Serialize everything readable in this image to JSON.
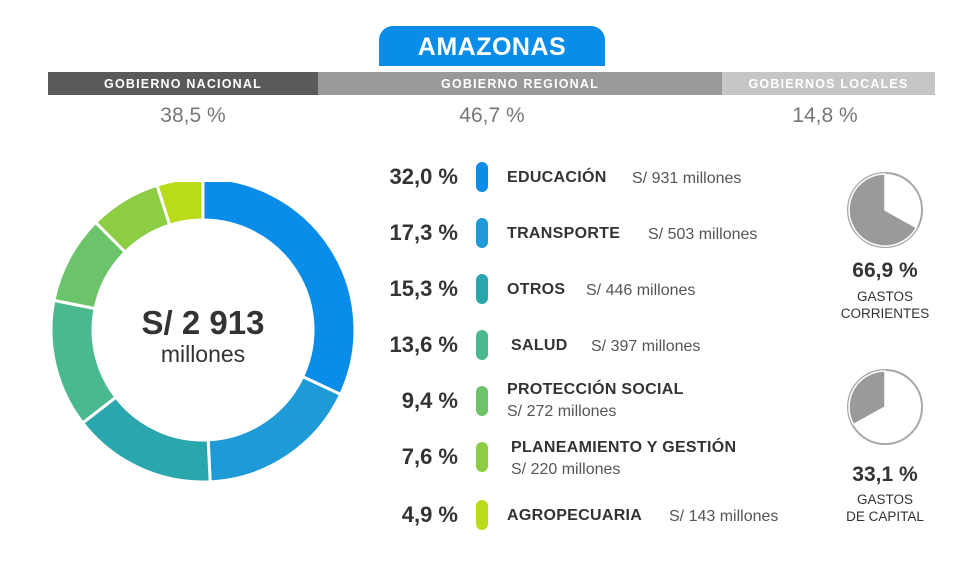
{
  "title": "AMAZONAS",
  "government_levels": [
    {
      "label": "GOBIERNO NACIONAL",
      "percent": "38,5 %",
      "color": "#5a5a5a"
    },
    {
      "label": "GOBIERNO REGIONAL",
      "percent": "46,7 %",
      "color": "#999999"
    },
    {
      "label": "GOBIERNOS LOCALES",
      "percent": "14,8 %",
      "color": "#c6c6c6"
    }
  ],
  "total": {
    "amount": "S/ 2 913",
    "unit": "millones"
  },
  "categories": [
    {
      "percent": "32,0 %",
      "name": "EDUCACIÓN",
      "amount": "S/ 931 millones",
      "color": "#0a8de8"
    },
    {
      "percent": "17,3 %",
      "name": "TRANSPORTE",
      "amount": "S/ 503 millones",
      "color": "#1e9bd6"
    },
    {
      "percent": "15,3 %",
      "name": "OTROS",
      "amount": "S/ 446 millones",
      "color": "#2aa6ad"
    },
    {
      "percent": "13,6 %",
      "name": "SALUD",
      "amount": "S/ 397 millones",
      "color": "#4bb98f"
    },
    {
      "percent": "9,4 %",
      "name": "PROTECCIÓN SOCIAL",
      "amount": "S/ 272 millones",
      "color": "#6cc46a"
    },
    {
      "percent": "7,6 %",
      "name": "PLANEAMIENTO Y GESTIÓN",
      "amount": "S/ 220 millones",
      "color": "#8ccd44"
    },
    {
      "percent": "4,9 %",
      "name": "AGROPECUARIA",
      "amount": "S/ 143 millones",
      "color": "#b8dc1a"
    }
  ],
  "expense_types": [
    {
      "percent": "66,9 %",
      "label_line1": "GASTOS",
      "label_line2": "CORRIENTES",
      "value": 66.9
    },
    {
      "percent": "33,1 %",
      "label_line1": "GASTOS",
      "label_line2": "DE CAPITAL",
      "value": 33.1
    }
  ],
  "chart_data": {
    "type": "pie",
    "title": "AMAZONAS",
    "total": "S/ 2 913 millones",
    "categories": [
      "EDUCACIÓN",
      "TRANSPORTE",
      "OTROS",
      "SALUD",
      "PROTECCIÓN SOCIAL",
      "PLANEAMIENTO Y GESTIÓN",
      "AGROPECUARIA"
    ],
    "values": [
      32.0,
      17.3,
      15.3,
      13.6,
      9.4,
      7.6,
      4.9
    ],
    "amounts_millones": [
      931,
      503,
      446,
      397,
      272,
      220,
      143
    ],
    "colors": [
      "#0a8de8",
      "#1e9bd6",
      "#2aa6ad",
      "#4bb98f",
      "#6cc46a",
      "#8ccd44",
      "#b8dc1a"
    ],
    "government_split": {
      "categories": [
        "GOBIERNO NACIONAL",
        "GOBIERNO REGIONAL",
        "GOBIERNOS LOCALES"
      ],
      "values": [
        38.5,
        46.7,
        14.8
      ]
    },
    "expense_split": {
      "categories": [
        "GASTOS CORRIENTES",
        "GASTOS DE CAPITAL"
      ],
      "values": [
        66.9,
        33.1
      ]
    }
  }
}
